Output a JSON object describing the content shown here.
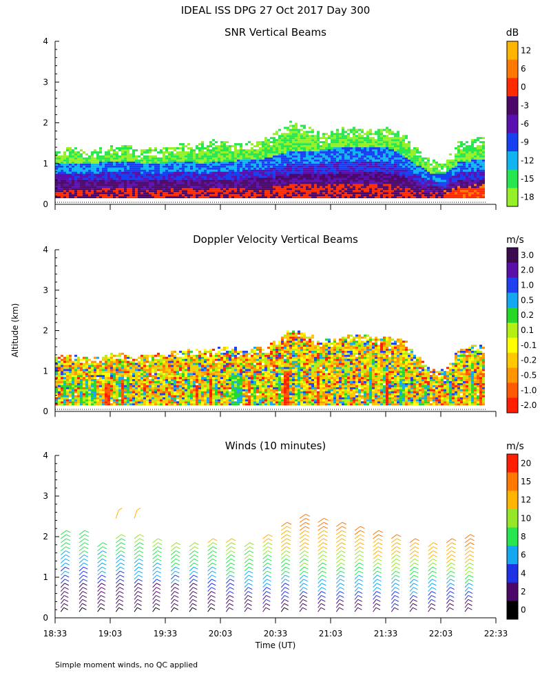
{
  "title": "IDEAL ISS DPG  27 Oct 2017 Day 300",
  "ylabel": "Altitude (km)",
  "xlabel": "Time (UT)",
  "footnote": "Simple moment winds, no QC applied",
  "yticks": [
    "0",
    "1",
    "2",
    "3",
    "4"
  ],
  "xticks": [
    "18:33",
    "19:03",
    "19:33",
    "20:03",
    "20:33",
    "21:03",
    "21:33",
    "22:03",
    "22:33"
  ],
  "chart_data": [
    {
      "type": "heatmap",
      "title": "SNR Vertical Beams",
      "units": "dB",
      "ylim": [
        0,
        4
      ],
      "xlim": [
        "18:33",
        "22:33"
      ],
      "colorbar": {
        "labels": [
          "12",
          "6",
          "0",
          "-3",
          "-6",
          "-9",
          "-12",
          "-15",
          "-18"
        ],
        "colors": [
          "#FFB400",
          "#FF7800",
          "#FF2A00",
          "#4B0868",
          "#5A10B0",
          "#1640F0",
          "#10B4F0",
          "#28E650",
          "#96F028"
        ]
      },
      "profile_top_km": [
        1.35,
        1.35,
        1.3,
        1.3,
        1.4,
        1.4,
        1.35,
        1.35,
        1.4,
        1.45,
        1.5,
        1.5,
        1.55,
        1.5,
        1.5,
        1.55,
        1.8,
        2.0,
        1.9,
        1.7,
        1.75,
        1.85,
        1.85,
        1.8,
        1.85,
        1.75,
        1.35,
        1.05,
        1.0,
        1.5,
        1.6,
        1.6
      ],
      "top_band_km": [
        1.0,
        1.0,
        1.0,
        1.0,
        1.05,
        1.05,
        1.0,
        1.0,
        1.0,
        1.05,
        1.0,
        1.0,
        1.05,
        1.05,
        1.1,
        1.1,
        1.2,
        1.3,
        1.3,
        1.3,
        1.35,
        1.4,
        1.4,
        1.4,
        1.35,
        1.2,
        0.95,
        0.75,
        0.7,
        1.0,
        1.05,
        1.1
      ]
    },
    {
      "type": "heatmap",
      "title": "Doppler Velocity Vertical Beams",
      "units": "m/s",
      "ylim": [
        0,
        4
      ],
      "xlim": [
        "18:33",
        "22:33"
      ],
      "colorbar": {
        "labels": [
          "3.0",
          "2.0",
          "1.0",
          "0.5",
          "0.2",
          "0.1",
          "-0.1",
          "-0.2",
          "-0.5",
          "-1.0",
          "-2.0"
        ],
        "colors": [
          "#3C0A4E",
          "#5A10A8",
          "#1E40F0",
          "#14A8F0",
          "#28D828",
          "#B4F014",
          "#FFFF00",
          "#FFC800",
          "#FF9600",
          "#FF5A00",
          "#FF1E00"
        ]
      },
      "profile_top_km": [
        1.35,
        1.35,
        1.3,
        1.3,
        1.4,
        1.4,
        1.35,
        1.35,
        1.4,
        1.45,
        1.5,
        1.5,
        1.55,
        1.5,
        1.5,
        1.55,
        1.8,
        2.0,
        1.9,
        1.7,
        1.75,
        1.85,
        1.85,
        1.8,
        1.85,
        1.75,
        1.35,
        1.05,
        1.0,
        1.5,
        1.6,
        1.6
      ]
    },
    {
      "type": "wind-barbs",
      "title": "Winds (10 minutes)",
      "units": "m/s",
      "ylim": [
        0,
        4
      ],
      "xlim": [
        "18:33",
        "22:33"
      ],
      "colorbar": {
        "labels": [
          "20",
          "15",
          "12",
          "10",
          "8",
          "6",
          "4",
          "2",
          "0"
        ],
        "colors": [
          "#FF1E00",
          "#FF7800",
          "#FFB400",
          "#96E628",
          "#28E650",
          "#14A8F0",
          "#1E32E6",
          "#4B0868",
          "#000000"
        ]
      },
      "profile_times": [
        "18:38",
        "18:48",
        "18:58",
        "19:08",
        "19:18",
        "19:28",
        "19:38",
        "19:48",
        "19:58",
        "20:08",
        "20:18",
        "20:28",
        "20:38",
        "20:48",
        "20:58",
        "21:08",
        "21:18",
        "21:28",
        "21:38",
        "21:48",
        "21:58",
        "22:08",
        "22:18"
      ],
      "profile_top_km": [
        2.1,
        2.1,
        1.8,
        2.0,
        2.0,
        1.9,
        1.8,
        1.8,
        1.9,
        1.9,
        1.8,
        2.0,
        2.3,
        2.5,
        2.4,
        2.3,
        2.2,
        2.1,
        2.0,
        1.9,
        1.8,
        1.9,
        2.0
      ]
    }
  ]
}
